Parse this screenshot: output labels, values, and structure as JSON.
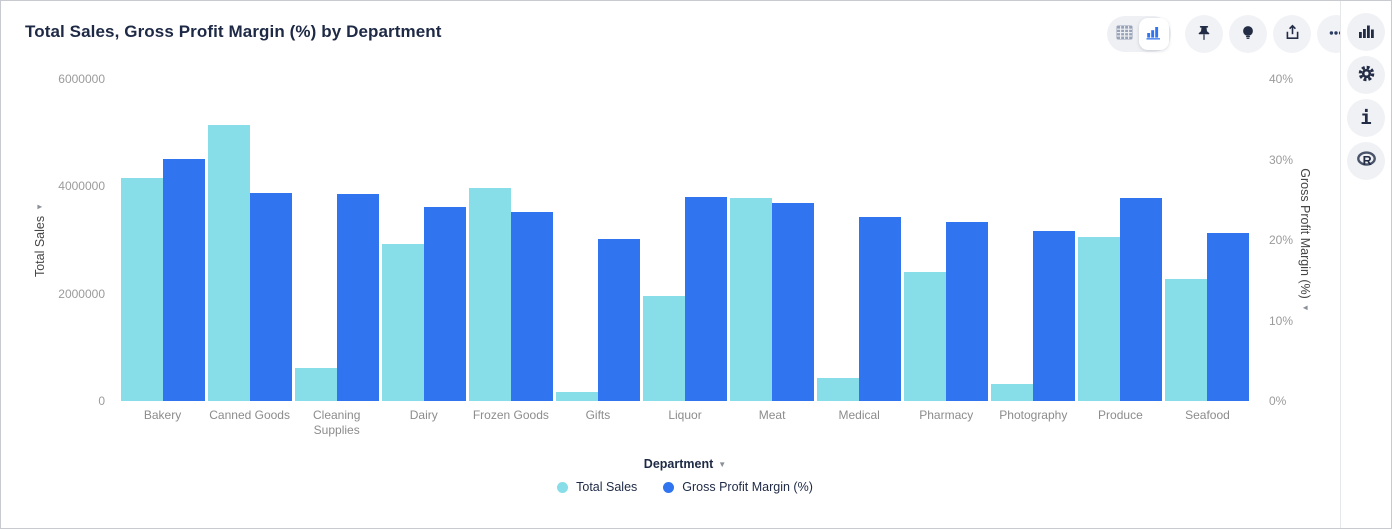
{
  "title": "Total Sales, Gross Profit Margin (%) by Department",
  "colors": {
    "teal": "#87dee8",
    "blue": "#3075ef",
    "title_text": "#1e2a45",
    "tick_text": "#9b9b9b",
    "x_label_text": "#8c8c8c"
  },
  "toolbar": {
    "view_toggle": [
      {
        "icon": "table-icon",
        "selected": false
      },
      {
        "icon": "bar-chart-icon",
        "selected": true
      }
    ],
    "buttons": [
      {
        "icon": "pin-icon"
      },
      {
        "icon": "lightbulb-icon"
      },
      {
        "icon": "export-icon"
      },
      {
        "icon": "ellipsis-icon"
      }
    ]
  },
  "side_panel": {
    "buttons": [
      {
        "icon": "bar-chart-icon"
      },
      {
        "icon": "gear-icon"
      },
      {
        "icon": "info-icon"
      },
      {
        "icon": "r-logo-icon"
      }
    ]
  },
  "chart_data": {
    "type": "bar",
    "title": "Total Sales, Gross Profit Margin (%) by Department",
    "categories": [
      "Bakery",
      "Canned Goods",
      "Cleaning Supplies",
      "Dairy",
      "Frozen Goods",
      "Gifts",
      "Liquor",
      "Meat",
      "Medical",
      "Pharmacy",
      "Photography",
      "Produce",
      "Seafood"
    ],
    "series": [
      {
        "name": "Total Sales",
        "axis": "left",
        "color": "#87dee8",
        "values": [
          4150000,
          5150000,
          610000,
          2920000,
          3960000,
          160000,
          1950000,
          3790000,
          430000,
          2400000,
          320000,
          3050000,
          2270000
        ]
      },
      {
        "name": "Gross Profit Margin (%)",
        "axis": "right",
        "color": "#3075ef",
        "values": [
          30,
          25.8,
          25.7,
          24.1,
          23.5,
          20.1,
          25.3,
          24.6,
          22.9,
          22.2,
          21.1,
          25.2,
          20.9
        ]
      }
    ],
    "x_axis": {
      "label": "Department"
    },
    "left_axis": {
      "label": "Total Sales",
      "min": 0,
      "max": 6000000,
      "ticks": [
        0,
        2000000,
        4000000,
        6000000
      ],
      "suffix": ""
    },
    "right_axis": {
      "label": "Gross Profit Margin (%)",
      "min": 0,
      "max": 40,
      "ticks": [
        0,
        10,
        20,
        30,
        40
      ],
      "suffix": "%"
    },
    "grid": false,
    "legend_position": "bottom"
  }
}
